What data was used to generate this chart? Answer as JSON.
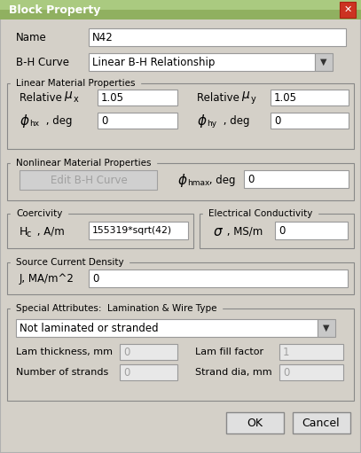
{
  "title": "Block Property",
  "bg_color": "#d4d0c8",
  "dialog_bg": "#d4d0c8",
  "field_bg": "#ffffff",
  "disabled_field_bg": "#e8e8e8",
  "disabled_text_color": "#a0a0a0",
  "border_color": "#808080",
  "title_bar_color": "#4a7fb5",
  "title_text": "Block Property",
  "close_btn_color": "#c0392b",
  "fields": {
    "name": "N42",
    "bh_curve": "Linear B-H Relationship",
    "mu_x": "1.05",
    "mu_y": "1.05",
    "phi_hx": "0",
    "phi_hy": "0",
    "phi_hmax": "0",
    "hc": "155319*sqrt(42)",
    "sigma": "0",
    "J": "0",
    "lam_type": "Not laminated or stranded",
    "lam_thickness": "0",
    "lam_fill": "1",
    "num_strands": "0",
    "strand_dia": "0"
  }
}
